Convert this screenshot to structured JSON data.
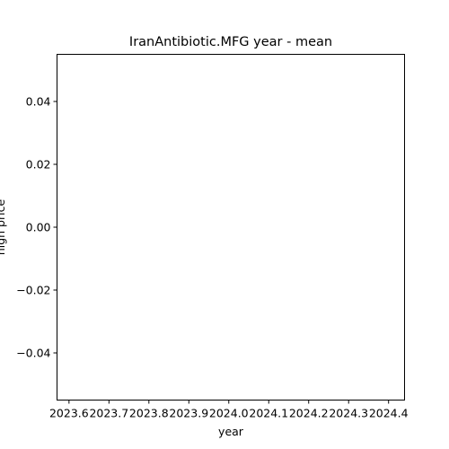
{
  "chart_data": {
    "type": "line",
    "title": "IranAntibiotic.MFG year - mean",
    "xlabel": "year",
    "ylabel": "high price",
    "x_ticks": [
      "2023.6",
      "2023.7",
      "2023.8",
      "2023.9",
      "2024.0",
      "2024.1",
      "2024.2",
      "2024.3",
      "2024.4"
    ],
    "y_ticks": [
      "0.04",
      "0.02",
      "0.00",
      "−0.02",
      "−0.04"
    ],
    "xlim": [
      2023.57,
      2024.44
    ],
    "ylim": [
      -0.055,
      0.055
    ],
    "series": [
      {
        "x": [],
        "y": []
      }
    ],
    "grid": false,
    "legend": "none"
  }
}
